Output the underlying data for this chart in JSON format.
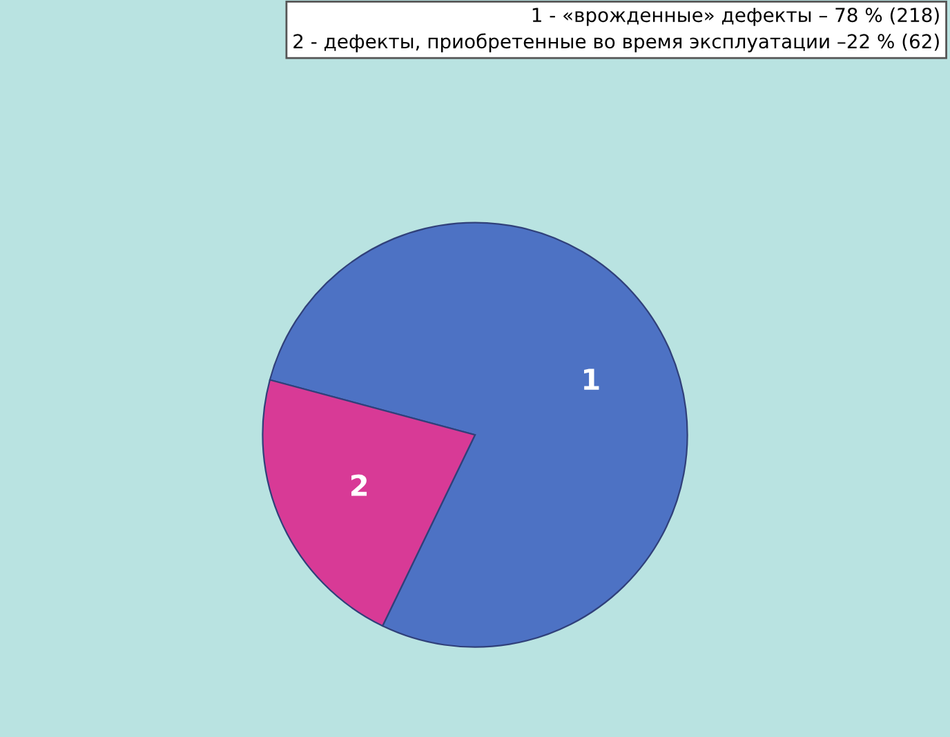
{
  "chart_data": {
    "type": "pie",
    "categories": [
      "1",
      "2"
    ],
    "values": [
      78,
      22
    ],
    "colors": [
      "#4d72c4",
      "#d83a96"
    ],
    "annotations": [
      "1 - «врожденные» дефекты – 78 % (218)",
      "2 - дефекты, приобретенные во время эксплуатации –22 % (62)"
    ]
  }
}
